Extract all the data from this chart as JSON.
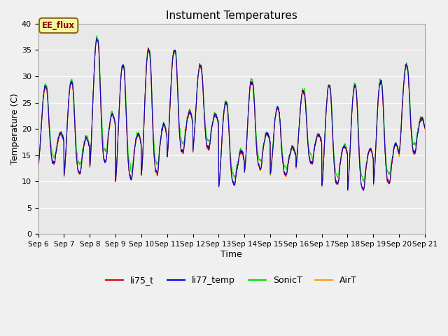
{
  "title": "Instument Temperatures",
  "xlabel": "Time",
  "ylabel": "Temperature (C)",
  "ylim": [
    0,
    40
  ],
  "yticks": [
    0,
    5,
    10,
    15,
    20,
    25,
    30,
    35,
    40
  ],
  "background_color": "#e8e8e8",
  "figure_bg": "#f0f0f0",
  "annotation_text": "EE_flux",
  "series_colors": {
    "li75_t": "#dd0000",
    "li77_temp": "#0000dd",
    "SonicT": "#00dd00",
    "AirT": "#ff9900"
  },
  "legend_labels": [
    "li75_t",
    "li77_temp",
    "SonicT",
    "AirT"
  ],
  "legend_colors": [
    "#dd0000",
    "#0000dd",
    "#00dd00",
    "#ff9900"
  ],
  "title_fontsize": 11,
  "axis_label_fontsize": 9,
  "tick_fontsize": 8
}
